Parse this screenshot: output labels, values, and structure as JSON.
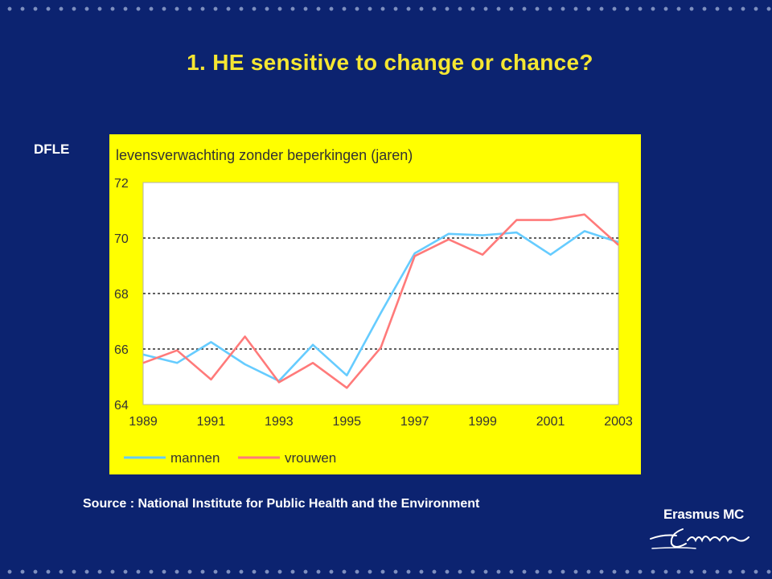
{
  "slide": {
    "title": "1. HE sensitive to change or chance?",
    "label": "DFLE",
    "source": "Source : National Institute for Public Health and the Environment",
    "logo_text": "Erasmus MC",
    "logo_script": "Erafmus"
  },
  "colors": {
    "background": "#0c2370",
    "title": "#f5e632",
    "panel": "#ffff00",
    "mannen": "#66ccff",
    "vrouwen": "#ff7a7a"
  },
  "chart_data": {
    "type": "line",
    "title": "levensverwachting zonder beperkingen (jaren)",
    "x": [
      1989,
      1990,
      1991,
      1992,
      1993,
      1994,
      1995,
      1996,
      1997,
      1998,
      1999,
      2000,
      2001,
      2002,
      2003
    ],
    "xticks": [
      "1989",
      "1991",
      "1993",
      "1995",
      "1997",
      "1999",
      "2001",
      "2003"
    ],
    "yticks": [
      "64",
      "66",
      "68",
      "70",
      "72"
    ],
    "ylim": [
      64,
      72
    ],
    "grid": "dashed horizontal at 66, 68, 70",
    "legend_position": "bottom",
    "series": [
      {
        "name": "mannen",
        "values": [
          65.8,
          65.5,
          66.25,
          65.45,
          64.85,
          66.15,
          65.05,
          67.3,
          69.45,
          70.15,
          70.1,
          70.2,
          69.4,
          70.25,
          69.85
        ]
      },
      {
        "name": "vrouwen",
        "values": [
          65.5,
          65.95,
          64.9,
          66.45,
          64.8,
          65.5,
          64.6,
          66.05,
          69.35,
          69.95,
          69.4,
          70.65,
          70.65,
          70.85,
          69.75
        ]
      }
    ]
  }
}
